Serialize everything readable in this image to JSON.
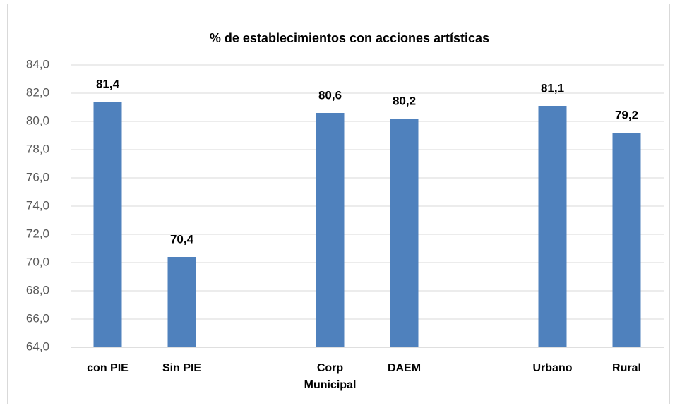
{
  "chart_data": {
    "type": "bar",
    "title": "% de establecimientos con acciones artísticas",
    "categories": [
      "con PIE",
      "Sin PIE",
      null,
      "Corp Municipal",
      "DAEM",
      null,
      "Urbano",
      "Rural"
    ],
    "values": [
      81.4,
      70.4,
      null,
      80.6,
      80.2,
      null,
      81.1,
      79.2
    ],
    "value_labels": [
      "81,4",
      "70,4",
      null,
      "80,6",
      "80,2",
      null,
      "81,1",
      "79,2"
    ],
    "color": "#4f81bd",
    "ylim": [
      64,
      84
    ],
    "yticks": [
      {
        "value": 64,
        "label": "64,0"
      },
      {
        "value": 66,
        "label": "66,0"
      },
      {
        "value": 68,
        "label": "68,0"
      },
      {
        "value": 70,
        "label": "70,0"
      },
      {
        "value": 72,
        "label": "72,0"
      },
      {
        "value": 74,
        "label": "74,0"
      },
      {
        "value": 76,
        "label": "76,0"
      },
      {
        "value": 78,
        "label": "78,0"
      },
      {
        "value": 80,
        "label": "80,0"
      },
      {
        "value": 82,
        "label": "82,0"
      },
      {
        "value": 84,
        "label": "84,0"
      }
    ],
    "grid": true
  }
}
